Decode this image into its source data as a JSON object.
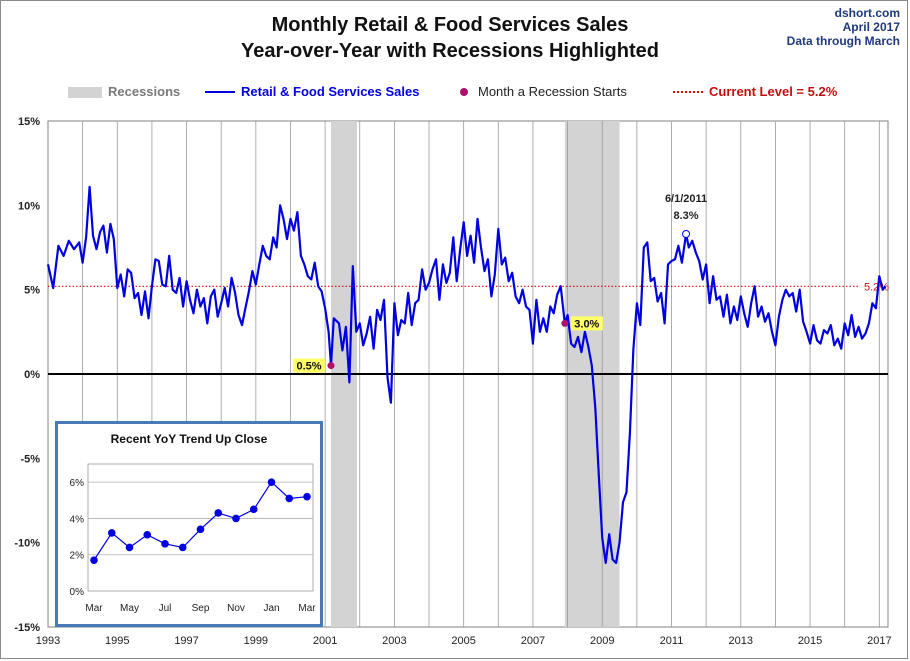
{
  "header": {
    "title_line1": "Monthly Retail & Food Services Sales",
    "title_line2": "Year-over-Year with Recessions Highlighted",
    "source_line1": "dshort.com",
    "source_line2": "April 2017",
    "source_line3": "Data through March"
  },
  "legend": {
    "recessions": "Recessions",
    "series": "Retail & Food Services Sales",
    "recession_start": "Month a Recession Starts",
    "current_level": "Current Level = 5.2%"
  },
  "colors": {
    "series": "#0000e0",
    "recession": "#d3d3d3",
    "recession_start_marker": "#b0106a",
    "current_level_line": "#d01010",
    "callout_bg": "#ffff66",
    "inset_border": "#4a7ab5"
  },
  "chart_data": [
    {
      "type": "line",
      "title": "Monthly Retail & Food Services Sales Year-over-Year with Recessions Highlighted",
      "x_range": [
        1993.0,
        2017.25
      ],
      "ylim": [
        -15,
        15
      ],
      "y_ticks": [
        "15%",
        "10%",
        "5%",
        "0%",
        "-5%",
        "-10%",
        "-15%"
      ],
      "y_tick_values": [
        15,
        10,
        5,
        0,
        -5,
        -10,
        -15
      ],
      "x_ticks": [
        "1993",
        "1995",
        "1997",
        "1999",
        "2001",
        "2003",
        "2005",
        "2007",
        "2009",
        "2011",
        "2013",
        "2015",
        "2017"
      ],
      "x_tick_values": [
        1993,
        1995,
        1997,
        1999,
        2001,
        2003,
        2005,
        2007,
        2009,
        2011,
        2013,
        2015,
        2017
      ],
      "grid": "vertical yearly",
      "legend_position": "top",
      "recessions": [
        {
          "start": 2001.17,
          "end": 2001.92
        },
        {
          "start": 2007.92,
          "end": 2009.5
        }
      ],
      "current_level": 5.2,
      "current_level_label": "5.2%",
      "recession_starts": [
        {
          "x": 2001.17,
          "y": 0.5,
          "label": "0.5%"
        },
        {
          "x": 2007.92,
          "y": 3.0,
          "label": "3.0%"
        }
      ],
      "peak_annotation": {
        "x": 2011.42,
        "y": 8.3,
        "date_label": "6/1/2011",
        "value_label": "8.3%"
      },
      "series": [
        {
          "name": "Retail & Food Services Sales",
          "points": [
            [
              1993.0,
              6.5
            ],
            [
              1993.15,
              5.1
            ],
            [
              1993.3,
              7.6
            ],
            [
              1993.45,
              7.0
            ],
            [
              1993.6,
              7.9
            ],
            [
              1993.75,
              7.4
            ],
            [
              1993.9,
              7.8
            ],
            [
              1994.0,
              6.6
            ],
            [
              1994.1,
              8.1
            ],
            [
              1994.2,
              11.1
            ],
            [
              1994.3,
              8.2
            ],
            [
              1994.4,
              7.4
            ],
            [
              1994.5,
              8.4
            ],
            [
              1994.6,
              8.8
            ],
            [
              1994.7,
              7.2
            ],
            [
              1994.8,
              8.9
            ],
            [
              1994.9,
              8.0
            ],
            [
              1995.0,
              5.1
            ],
            [
              1995.1,
              5.9
            ],
            [
              1995.2,
              4.6
            ],
            [
              1995.3,
              6.2
            ],
            [
              1995.4,
              6.0
            ],
            [
              1995.5,
              4.5
            ],
            [
              1995.6,
              4.8
            ],
            [
              1995.7,
              3.5
            ],
            [
              1995.8,
              4.9
            ],
            [
              1995.9,
              3.3
            ],
            [
              1996.0,
              5.2
            ],
            [
              1996.1,
              6.8
            ],
            [
              1996.2,
              6.7
            ],
            [
              1996.3,
              5.3
            ],
            [
              1996.4,
              5.2
            ],
            [
              1996.5,
              7.0
            ],
            [
              1996.6,
              5.0
            ],
            [
              1996.7,
              4.8
            ],
            [
              1996.8,
              5.7
            ],
            [
              1996.9,
              4.0
            ],
            [
              1997.0,
              5.5
            ],
            [
              1997.1,
              4.4
            ],
            [
              1997.2,
              3.6
            ],
            [
              1997.3,
              5.0
            ],
            [
              1997.4,
              4.0
            ],
            [
              1997.5,
              4.5
            ],
            [
              1997.6,
              3.0
            ],
            [
              1997.7,
              4.6
            ],
            [
              1997.8,
              5.0
            ],
            [
              1997.9,
              3.4
            ],
            [
              1998.0,
              4.2
            ],
            [
              1998.1,
              5.1
            ],
            [
              1998.2,
              4.0
            ],
            [
              1998.3,
              5.7
            ],
            [
              1998.4,
              4.8
            ],
            [
              1998.5,
              3.5
            ],
            [
              1998.6,
              2.9
            ],
            [
              1998.7,
              3.9
            ],
            [
              1998.8,
              4.9
            ],
            [
              1998.9,
              6.1
            ],
            [
              1999.0,
              5.3
            ],
            [
              1999.1,
              6.5
            ],
            [
              1999.2,
              7.6
            ],
            [
              1999.3,
              7.0
            ],
            [
              1999.4,
              6.8
            ],
            [
              1999.5,
              8.1
            ],
            [
              1999.6,
              7.5
            ],
            [
              1999.7,
              10.0
            ],
            [
              1999.8,
              9.2
            ],
            [
              1999.9,
              8.0
            ],
            [
              2000.0,
              9.2
            ],
            [
              2000.1,
              8.5
            ],
            [
              2000.2,
              9.6
            ],
            [
              2000.3,
              7.0
            ],
            [
              2000.4,
              6.5
            ],
            [
              2000.5,
              5.8
            ],
            [
              2000.6,
              5.6
            ],
            [
              2000.7,
              6.6
            ],
            [
              2000.8,
              5.2
            ],
            [
              2000.9,
              4.9
            ],
            [
              2001.0,
              3.9
            ],
            [
              2001.1,
              2.5
            ],
            [
              2001.17,
              0.5
            ],
            [
              2001.25,
              3.3
            ],
            [
              2001.4,
              3.0
            ],
            [
              2001.5,
              1.4
            ],
            [
              2001.6,
              2.8
            ],
            [
              2001.7,
              -0.5
            ],
            [
              2001.8,
              6.4
            ],
            [
              2001.9,
              2.5
            ],
            [
              2002.0,
              3.0
            ],
            [
              2002.1,
              1.7
            ],
            [
              2002.2,
              2.4
            ],
            [
              2002.3,
              3.4
            ],
            [
              2002.4,
              1.5
            ],
            [
              2002.5,
              3.8
            ],
            [
              2002.6,
              3.2
            ],
            [
              2002.7,
              4.4
            ],
            [
              2002.8,
              -0.2
            ],
            [
              2002.9,
              -1.7
            ],
            [
              2003.0,
              4.2
            ],
            [
              2003.1,
              2.3
            ],
            [
              2003.2,
              3.2
            ],
            [
              2003.3,
              3.0
            ],
            [
              2003.4,
              4.8
            ],
            [
              2003.5,
              2.9
            ],
            [
              2003.6,
              4.2
            ],
            [
              2003.7,
              4.4
            ],
            [
              2003.8,
              6.2
            ],
            [
              2003.9,
              5.0
            ],
            [
              2004.0,
              5.4
            ],
            [
              2004.1,
              6.2
            ],
            [
              2004.2,
              6.8
            ],
            [
              2004.3,
              4.4
            ],
            [
              2004.4,
              6.5
            ],
            [
              2004.5,
              5.4
            ],
            [
              2004.6,
              6.0
            ],
            [
              2004.7,
              8.1
            ],
            [
              2004.8,
              5.5
            ],
            [
              2004.9,
              7.4
            ],
            [
              2005.0,
              9.0
            ],
            [
              2005.1,
              7.0
            ],
            [
              2005.2,
              8.2
            ],
            [
              2005.3,
              6.6
            ],
            [
              2005.4,
              9.2
            ],
            [
              2005.5,
              7.5
            ],
            [
              2005.6,
              6.1
            ],
            [
              2005.7,
              6.8
            ],
            [
              2005.8,
              4.6
            ],
            [
              2005.9,
              5.9
            ],
            [
              2006.0,
              8.6
            ],
            [
              2006.1,
              6.5
            ],
            [
              2006.2,
              6.9
            ],
            [
              2006.3,
              5.5
            ],
            [
              2006.4,
              6.0
            ],
            [
              2006.5,
              4.6
            ],
            [
              2006.6,
              4.2
            ],
            [
              2006.7,
              5.0
            ],
            [
              2006.8,
              4.0
            ],
            [
              2006.9,
              3.8
            ],
            [
              2007.0,
              1.8
            ],
            [
              2007.1,
              4.4
            ],
            [
              2007.2,
              2.5
            ],
            [
              2007.3,
              3.3
            ],
            [
              2007.4,
              2.5
            ],
            [
              2007.5,
              4.0
            ],
            [
              2007.6,
              3.6
            ],
            [
              2007.7,
              4.7
            ],
            [
              2007.8,
              5.2
            ],
            [
              2007.92,
              3.0
            ],
            [
              2008.0,
              3.5
            ],
            [
              2008.1,
              1.8
            ],
            [
              2008.2,
              1.6
            ],
            [
              2008.3,
              2.2
            ],
            [
              2008.4,
              1.3
            ],
            [
              2008.5,
              2.5
            ],
            [
              2008.6,
              1.6
            ],
            [
              2008.7,
              0.5
            ],
            [
              2008.8,
              -2.0
            ],
            [
              2008.9,
              -6.0
            ],
            [
              2009.0,
              -9.7
            ],
            [
              2009.1,
              -11.2
            ],
            [
              2009.2,
              -9.5
            ],
            [
              2009.3,
              -11.0
            ],
            [
              2009.4,
              -11.2
            ],
            [
              2009.5,
              -10.0
            ],
            [
              2009.6,
              -7.6
            ],
            [
              2009.7,
              -7.0
            ],
            [
              2009.8,
              -3.5
            ],
            [
              2009.9,
              1.5
            ],
            [
              2010.0,
              4.2
            ],
            [
              2010.1,
              2.9
            ],
            [
              2010.2,
              7.5
            ],
            [
              2010.3,
              7.8
            ],
            [
              2010.4,
              5.5
            ],
            [
              2010.5,
              5.7
            ],
            [
              2010.6,
              4.3
            ],
            [
              2010.7,
              4.8
            ],
            [
              2010.8,
              3.0
            ],
            [
              2010.9,
              6.5
            ],
            [
              2011.0,
              6.7
            ],
            [
              2011.1,
              6.8
            ],
            [
              2011.2,
              7.6
            ],
            [
              2011.3,
              6.6
            ],
            [
              2011.42,
              8.3
            ],
            [
              2011.5,
              7.5
            ],
            [
              2011.6,
              7.9
            ],
            [
              2011.7,
              7.2
            ],
            [
              2011.8,
              6.7
            ],
            [
              2011.9,
              5.6
            ],
            [
              2012.0,
              6.5
            ],
            [
              2012.1,
              4.2
            ],
            [
              2012.2,
              5.8
            ],
            [
              2012.3,
              4.4
            ],
            [
              2012.4,
              4.6
            ],
            [
              2012.5,
              3.4
            ],
            [
              2012.6,
              4.7
            ],
            [
              2012.7,
              3.0
            ],
            [
              2012.8,
              4.0
            ],
            [
              2012.9,
              3.2
            ],
            [
              2013.0,
              4.6
            ],
            [
              2013.1,
              3.6
            ],
            [
              2013.2,
              2.8
            ],
            [
              2013.3,
              4.2
            ],
            [
              2013.4,
              5.2
            ],
            [
              2013.5,
              3.4
            ],
            [
              2013.6,
              4.0
            ],
            [
              2013.7,
              3.1
            ],
            [
              2013.8,
              3.6
            ],
            [
              2013.9,
              2.5
            ],
            [
              2014.0,
              1.7
            ],
            [
              2014.1,
              3.4
            ],
            [
              2014.2,
              4.4
            ],
            [
              2014.3,
              5.0
            ],
            [
              2014.4,
              4.6
            ],
            [
              2014.5,
              4.8
            ],
            [
              2014.6,
              3.7
            ],
            [
              2014.7,
              5.0
            ],
            [
              2014.8,
              3.1
            ],
            [
              2014.9,
              2.5
            ],
            [
              2015.0,
              1.8
            ],
            [
              2015.1,
              2.9
            ],
            [
              2015.2,
              2.0
            ],
            [
              2015.3,
              1.8
            ],
            [
              2015.4,
              2.6
            ],
            [
              2015.5,
              2.4
            ],
            [
              2015.6,
              2.9
            ],
            [
              2015.7,
              1.7
            ],
            [
              2015.8,
              2.1
            ],
            [
              2015.9,
              1.5
            ],
            [
              2016.0,
              3.0
            ],
            [
              2016.1,
              2.3
            ],
            [
              2016.2,
              3.5
            ],
            [
              2016.3,
              2.2
            ],
            [
              2016.4,
              2.8
            ],
            [
              2016.5,
              2.1
            ],
            [
              2016.6,
              2.4
            ],
            [
              2016.7,
              3.0
            ],
            [
              2016.8,
              4.2
            ],
            [
              2016.9,
              3.9
            ],
            [
              2017.0,
              5.8
            ],
            [
              2017.1,
              5.0
            ],
            [
              2017.17,
              5.2
            ]
          ]
        }
      ]
    },
    {
      "type": "line",
      "title": "Recent  YoY Trend Up Close",
      "categories": [
        "Mar",
        "Apr",
        "May",
        "Jun",
        "Jul",
        "Aug",
        "Sep",
        "Oct",
        "Nov",
        "Dec",
        "Jan",
        "Feb",
        "Mar"
      ],
      "x_tick_labels": [
        "Mar",
        "May",
        "Jul",
        "Sep",
        "Nov",
        "Jan",
        "Mar"
      ],
      "values": [
        1.7,
        3.2,
        2.4,
        3.1,
        2.6,
        2.4,
        3.4,
        4.3,
        4.0,
        4.5,
        6.0,
        5.1,
        5.2
      ],
      "ylim": [
        0,
        7
      ],
      "y_ticks": [
        "6%",
        "4%",
        "2%",
        "0%"
      ],
      "y_tick_values": [
        6,
        4,
        2,
        0
      ],
      "grid": "horizontal"
    }
  ]
}
